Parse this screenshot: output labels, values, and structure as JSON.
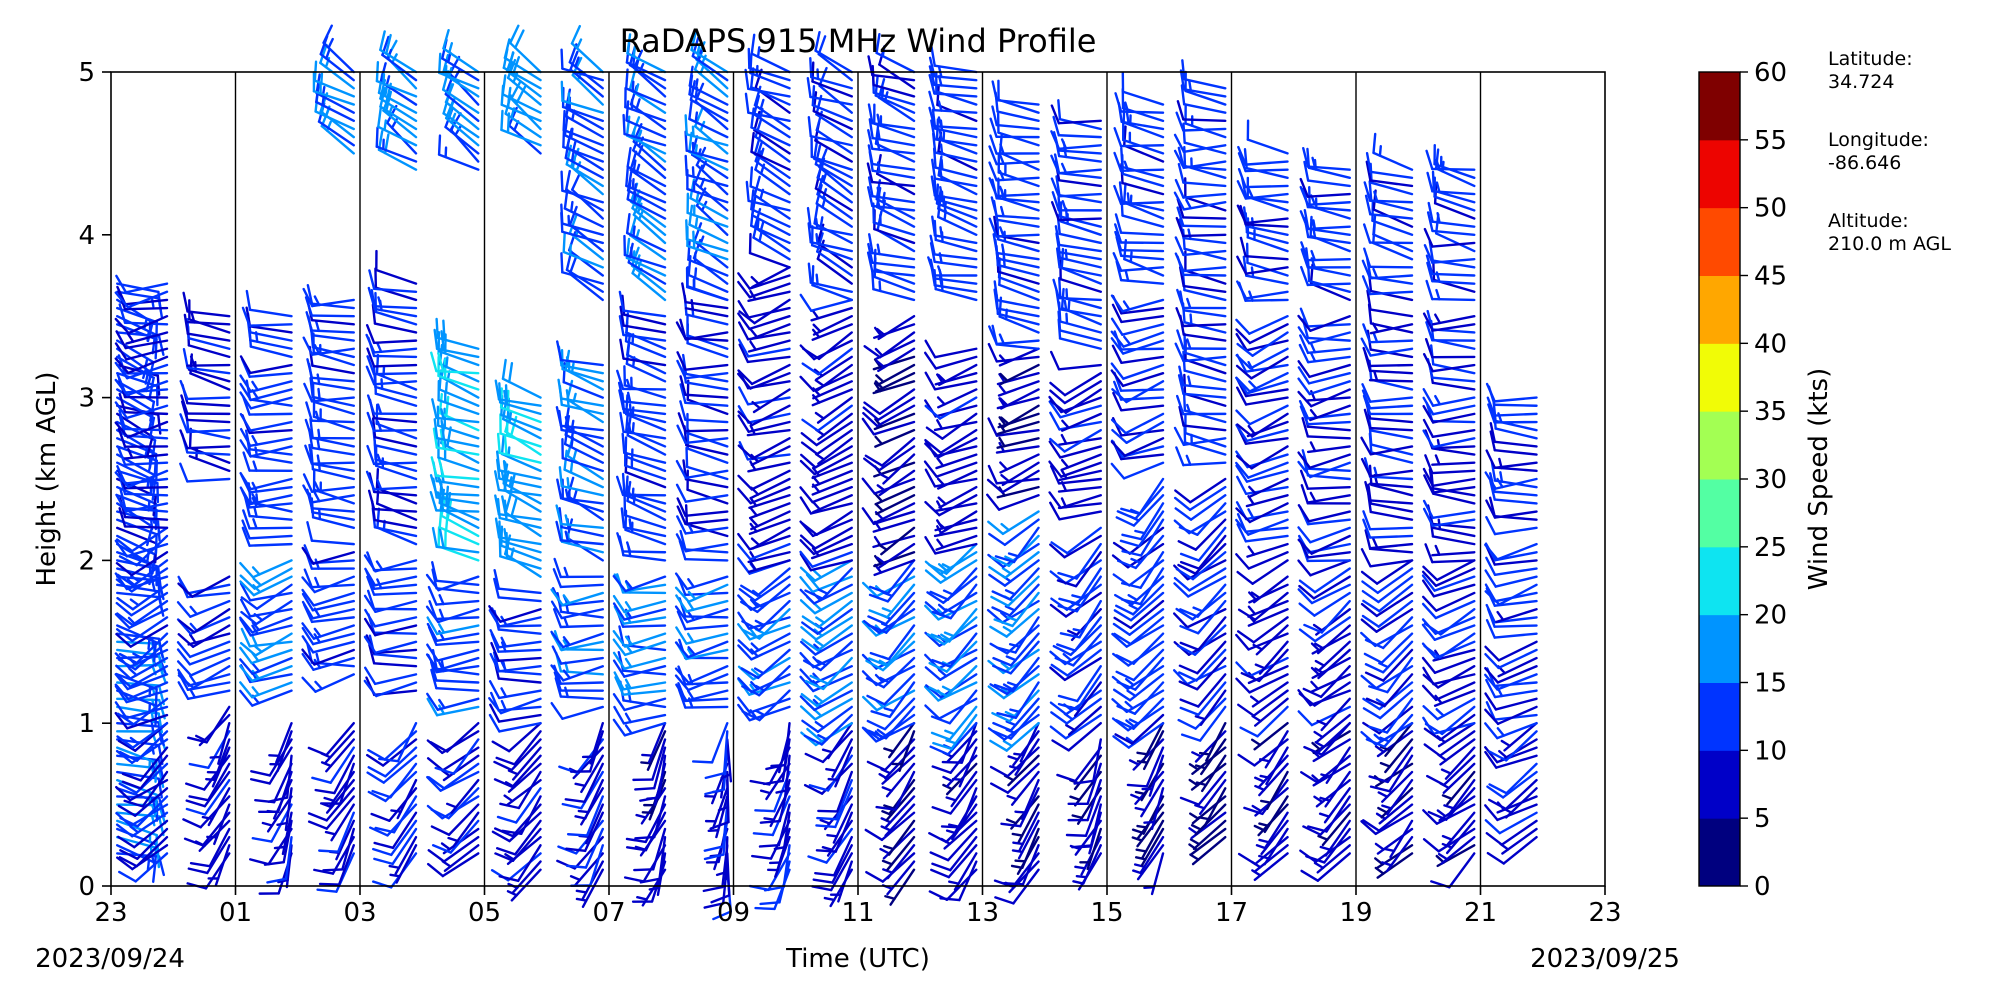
{
  "chart_data": {
    "type": "wind_barb_profile",
    "title": "RaDAPS 915 MHz Wind Profile",
    "xlabel": "Time (UTC)",
    "ylabel": "Height (km AGL)",
    "ylim": [
      0,
      5
    ],
    "yticks": [
      "0",
      "1",
      "2",
      "3",
      "4",
      "5"
    ],
    "xticks": [
      "23",
      "01",
      "03",
      "05",
      "07",
      "09",
      "11",
      "13",
      "15",
      "17",
      "19",
      "21",
      "23"
    ],
    "start_date": "2023/09/24",
    "end_date": "2023/09/25",
    "grid": "vertical lines every 2 hours",
    "colorbar": {
      "label": "Wind Speed (kts)",
      "ticks": [
        "0",
        "5",
        "10",
        "15",
        "20",
        "25",
        "30",
        "35",
        "40",
        "45",
        "50",
        "55",
        "60"
      ],
      "colors": [
        "#00007f",
        "#0000c8",
        "#0034ff",
        "#0094ff",
        "#0ee4f1",
        "#53ffa3",
        "#a3ff53",
        "#f1fc06",
        "#ffa700",
        "#ff4a00",
        "#ed0400",
        "#7f0000"
      ]
    },
    "profiles": [
      {
        "hour": 0.1,
        "levels": [
          [
            0.2,
            "0.2–1.6",
            100,
            14
          ],
          [
            1.8,
            3.7,
            110,
            12
          ]
        ]
      },
      {
        "hour": 0.9,
        "levels": [
          [
            0.2,
            1.0,
            230,
            10
          ],
          [
            1.0,
            2.2,
            240,
            12
          ],
          [
            2.2,
            3.7,
            260,
            10
          ]
        ]
      },
      {
        "hour": 1.9,
        "levels": [
          [
            0.2,
            1.1,
            210,
            8
          ],
          [
            1.2,
            1.9,
            250,
            10
          ],
          [
            2.5,
            3.5,
            280,
            10
          ]
        ]
      },
      {
        "hour": 2.9,
        "levels": [
          [
            0.2,
            1.0,
            200,
            8
          ],
          [
            1.2,
            2.0,
            250,
            14
          ],
          [
            2.1,
            3.5,
            270,
            12
          ]
        ]
      },
      {
        "hour": 3.9,
        "levels": [
          [
            0.2,
            1.0,
            210,
            8
          ],
          [
            1.3,
            2.1,
            260,
            12
          ],
          [
            2.2,
            3.6,
            275,
            12
          ],
          [
            4.5,
            5.0,
            300,
            14
          ]
        ]
      },
      {
        "hour": 4.9,
        "levels": [
          [
            0.2,
            1.0,
            220,
            9
          ],
          [
            1.2,
            2.0,
            265,
            12
          ],
          [
            2.1,
            3.7,
            280,
            12
          ],
          [
            4.4,
            5.0,
            305,
            16
          ]
        ]
      },
      {
        "hour": 5.9,
        "levels": [
          [
            0.2,
            1.0,
            230,
            9
          ],
          [
            1.1,
            1.9,
            265,
            14
          ],
          [
            2.0,
            3.3,
            285,
            18
          ],
          [
            4.4,
            5.0,
            305,
            15
          ]
        ]
      },
      {
        "hour": 6.9,
        "levels": [
          [
            0.1,
            1.0,
            220,
            8
          ],
          [
            1.0,
            1.8,
            265,
            12
          ],
          [
            1.9,
            3.0,
            290,
            18
          ],
          [
            4.5,
            5.0,
            305,
            16
          ]
        ]
      },
      {
        "hour": 7.9,
        "levels": [
          [
            0.1,
            1.0,
            210,
            8
          ],
          [
            1.1,
            1.9,
            265,
            14
          ],
          [
            2.0,
            3.2,
            290,
            14
          ],
          [
            3.6,
            5.0,
            300,
            14
          ]
        ]
      },
      {
        "hour": 8.9,
        "levels": [
          [
            0.1,
            1.0,
            200,
            7
          ],
          [
            1.0,
            1.9,
            265,
            14
          ],
          [
            2.0,
            3.5,
            285,
            12
          ],
          [
            3.6,
            5.0,
            300,
            14
          ]
        ]
      },
      {
        "hour": 9.9,
        "levels": [
          [
            0.1,
            1.0,
            190,
            8
          ],
          [
            1.1,
            1.9,
            260,
            14
          ],
          [
            2.0,
            3.6,
            275,
            10
          ],
          [
            3.6,
            5.0,
            300,
            15
          ]
        ]
      },
      {
        "hour": 10.9,
        "levels": [
          [
            0.1,
            1.0,
            200,
            8
          ],
          [
            1.1,
            2.0,
            240,
            14
          ],
          [
            2.0,
            3.8,
            250,
            8
          ],
          [
            3.8,
            5.0,
            295,
            12
          ]
        ]
      },
      {
        "hour": 11.9,
        "levels": [
          [
            0.1,
            1.0,
            210,
            8
          ],
          [
            1.0,
            2.0,
            235,
            16
          ],
          [
            2.0,
            3.6,
            245,
            8
          ],
          [
            3.6,
            5.0,
            295,
            12
          ]
        ]
      },
      {
        "hour": 12.9,
        "levels": [
          [
            0.1,
            1.0,
            215,
            6
          ],
          [
            1.0,
            2.0,
            230,
            14
          ],
          [
            2.0,
            3.5,
            240,
            6
          ],
          [
            3.6,
            5.0,
            290,
            12
          ]
        ]
      },
      {
        "hour": 13.9,
        "levels": [
          [
            0.1,
            1.0,
            215,
            7
          ],
          [
            1.0,
            2.1,
            230,
            14
          ],
          [
            2.1,
            3.3,
            245,
            8
          ],
          [
            3.6,
            5.0,
            285,
            12
          ]
        ]
      },
      {
        "hour": 14.9,
        "levels": [
          [
            0.1,
            1.0,
            215,
            6
          ],
          [
            1.0,
            2.3,
            225,
            14
          ],
          [
            2.4,
            3.3,
            250,
            6
          ],
          [
            3.3,
            4.8,
            280,
            12
          ]
        ]
      },
      {
        "hour": 15.9,
        "levels": [
          [
            0.2,
            0.9,
            205,
            7
          ],
          [
            1.0,
            2.2,
            225,
            10
          ],
          [
            2.3,
            3.2,
            250,
            8
          ],
          [
            3.3,
            4.7,
            280,
            12
          ]
        ]
      },
      {
        "hour": 16.9,
        "levels": [
          [
            0.2,
            1.0,
            210,
            6
          ],
          [
            1.0,
            2.5,
            225,
            12
          ],
          [
            2.6,
            3.6,
            255,
            10
          ],
          [
            3.7,
            4.8,
            280,
            12
          ]
        ]
      },
      {
        "hour": 17.9,
        "levels": [
          [
            0.3,
            1.0,
            220,
            6
          ],
          [
            1.1,
            2.5,
            230,
            10
          ],
          [
            2.6,
            4.9,
            275,
            12
          ]
        ]
      },
      {
        "hour": 18.9,
        "levels": [
          [
            0.2,
            1.0,
            220,
            6
          ],
          [
            1.1,
            1.9,
            235,
            8
          ],
          [
            2.0,
            3.5,
            250,
            10
          ],
          [
            3.6,
            4.5,
            275,
            12
          ]
        ]
      },
      {
        "hour": 19.9,
        "levels": [
          [
            0.2,
            1.0,
            225,
            6
          ],
          [
            1.0,
            2.0,
            235,
            8
          ],
          [
            2.0,
            3.5,
            260,
            10
          ],
          [
            3.6,
            4.4,
            280,
            12
          ]
        ]
      },
      {
        "hour": 20.9,
        "levels": [
          [
            0.2,
            1.0,
            225,
            6
          ],
          [
            1.0,
            2.0,
            230,
            10
          ],
          [
            2.0,
            3.5,
            270,
            10
          ],
          [
            3.6,
            4.4,
            280,
            12
          ]
        ]
      },
      {
        "hour": 21.9,
        "levels": [
          [
            0.2,
            1.0,
            230,
            7
          ],
          [
            1.0,
            2.0,
            245,
            10
          ],
          [
            2.0,
            3.5,
            270,
            10
          ],
          [
            3.6,
            4.4,
            280,
            12
          ]
        ]
      },
      {
        "hour": 22.9,
        "levels": [
          [
            0.3,
            1.0,
            240,
            8
          ],
          [
            1.0,
            2.1,
            255,
            10
          ],
          [
            2.2,
            3.0,
            270,
            10
          ]
        ]
      }
    ]
  },
  "station": {
    "latitude_label": "Latitude:",
    "latitude": "34.724",
    "longitude_label": "Longitude:",
    "longitude": "-86.646",
    "altitude_label": "Altitude:",
    "altitude": "210.0 m AGL"
  }
}
